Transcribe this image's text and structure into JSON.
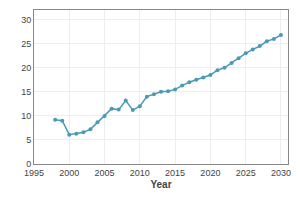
{
  "chart_data": {
    "type": "line",
    "xlabel": "Year",
    "x": [
      1998,
      1999,
      2000,
      2001,
      2002,
      2003,
      2004,
      2005,
      2006,
      2007,
      2008,
      2009,
      2010,
      2011,
      2012,
      2013,
      2014,
      2015,
      2016,
      2017,
      2018,
      2019,
      2020,
      2021,
      2022,
      2023,
      2024,
      2025,
      2026,
      2027,
      2028,
      2029,
      2030
    ],
    "values": [
      9.2,
      9.0,
      6.1,
      6.3,
      6.6,
      7.2,
      8.7,
      10.0,
      11.5,
      11.3,
      13.2,
      11.2,
      12.0,
      14.0,
      14.5,
      15.0,
      15.1,
      15.5,
      16.3,
      17.0,
      17.5,
      18.0,
      18.5,
      19.5,
      20.0,
      21.0,
      22.0,
      23.0,
      23.8,
      24.5,
      25.5,
      26.0,
      26.8
    ],
    "color": "#4a9ab5",
    "marker": "circle",
    "xlim": [
      1995,
      2031
    ],
    "xticks": [
      1995,
      2000,
      2005,
      2010,
      2015,
      2020,
      2025,
      2030
    ],
    "ylim": [
      0,
      32
    ],
    "yticks": [
      0,
      5,
      10,
      15,
      20,
      25,
      30
    ],
    "grid": true
  }
}
